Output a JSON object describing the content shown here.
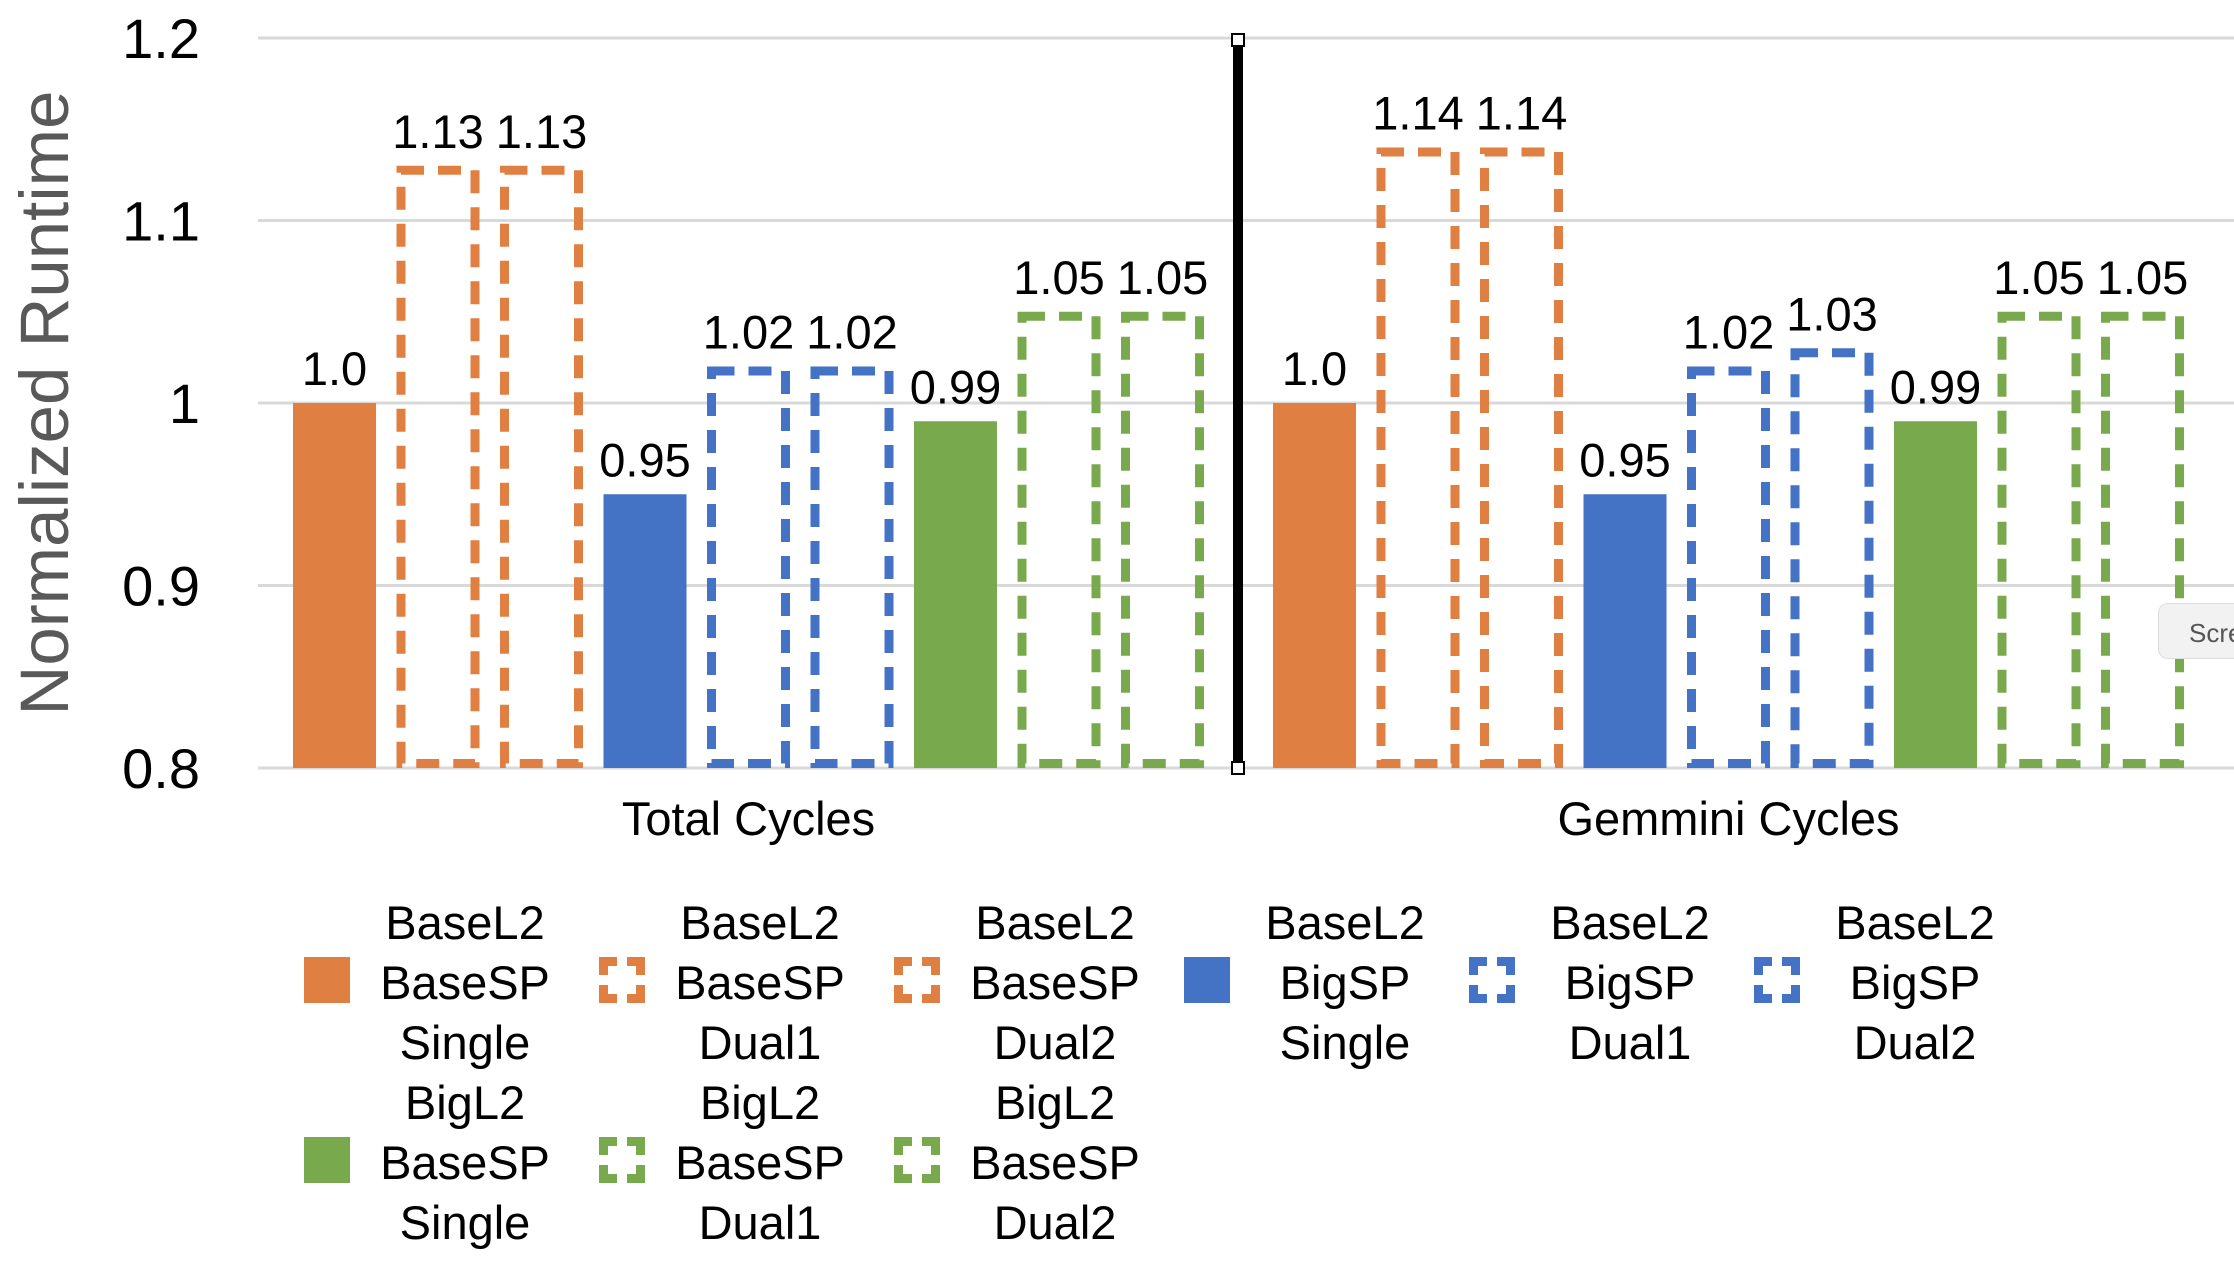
{
  "chart_data": {
    "type": "bar",
    "ylabel": "Normalized Runtime",
    "ylim": [
      0.8,
      1.2
    ],
    "yticks": [
      "0.8",
      "0.9",
      "1",
      "1.1",
      "1.2"
    ],
    "grid": true,
    "legend_position": "bottom",
    "categories": [
      "Total Cycles",
      "Gemmini Cycles"
    ],
    "series": [
      {
        "name": "BaseL2 BaseSP Single",
        "lines": [
          "BaseL2",
          "BaseSP",
          "Single"
        ],
        "style": "solid",
        "color": "#e07f42",
        "values": [
          1.0,
          1.0
        ],
        "labels": [
          "1.0",
          "1.0"
        ]
      },
      {
        "name": "BaseL2 BaseSP Dual1",
        "lines": [
          "BaseL2",
          "BaseSP",
          "Dual1"
        ],
        "style": "dashed",
        "color": "#e07f42",
        "values": [
          1.13,
          1.14
        ],
        "labels": [
          "1.13",
          "1.14"
        ]
      },
      {
        "name": "BaseL2 BaseSP Dual2",
        "lines": [
          "BaseL2",
          "BaseSP",
          "Dual2"
        ],
        "style": "dashed",
        "color": "#e07f42",
        "values": [
          1.13,
          1.14
        ],
        "labels": [
          "1.13",
          "1.14"
        ]
      },
      {
        "name": "BaseL2 BigSP Single",
        "lines": [
          "BaseL2",
          "BigSP",
          "Single"
        ],
        "style": "solid",
        "color": "#4472c4",
        "values": [
          0.95,
          0.95
        ],
        "labels": [
          "0.95",
          "0.95"
        ]
      },
      {
        "name": "BaseL2 BigSP Dual1",
        "lines": [
          "BaseL2",
          "BigSP",
          "Dual1"
        ],
        "style": "dashed",
        "color": "#4472c4",
        "values": [
          1.02,
          1.02
        ],
        "labels": [
          "1.02",
          "1.02"
        ]
      },
      {
        "name": "BaseL2 BigSP Dual2",
        "lines": [
          "BaseL2",
          "BigSP",
          "Dual2"
        ],
        "style": "dashed",
        "color": "#4472c4",
        "values": [
          1.02,
          1.03
        ],
        "labels": [
          "1.02",
          "1.03"
        ]
      },
      {
        "name": "BigL2 BaseSP Single",
        "lines": [
          "BigL2",
          "BaseSP",
          "Single"
        ],
        "style": "solid",
        "color": "#79a94d",
        "values": [
          0.99,
          0.99
        ],
        "labels": [
          "0.99",
          "0.99"
        ]
      },
      {
        "name": "BigL2 BaseSP Dual1",
        "lines": [
          "BigL2",
          "BaseSP",
          "Dual1"
        ],
        "style": "dashed",
        "color": "#79a94d",
        "values": [
          1.05,
          1.05
        ],
        "labels": [
          "1.05",
          "1.05"
        ]
      },
      {
        "name": "BigL2 BaseSP Dual2",
        "lines": [
          "BigL2",
          "BaseSP",
          "Dual2"
        ],
        "style": "dashed",
        "color": "#79a94d",
        "values": [
          1.05,
          1.05
        ],
        "labels": [
          "1.05",
          "1.05"
        ]
      }
    ]
  },
  "overlay": {
    "screenshot_tag": "Scre"
  }
}
